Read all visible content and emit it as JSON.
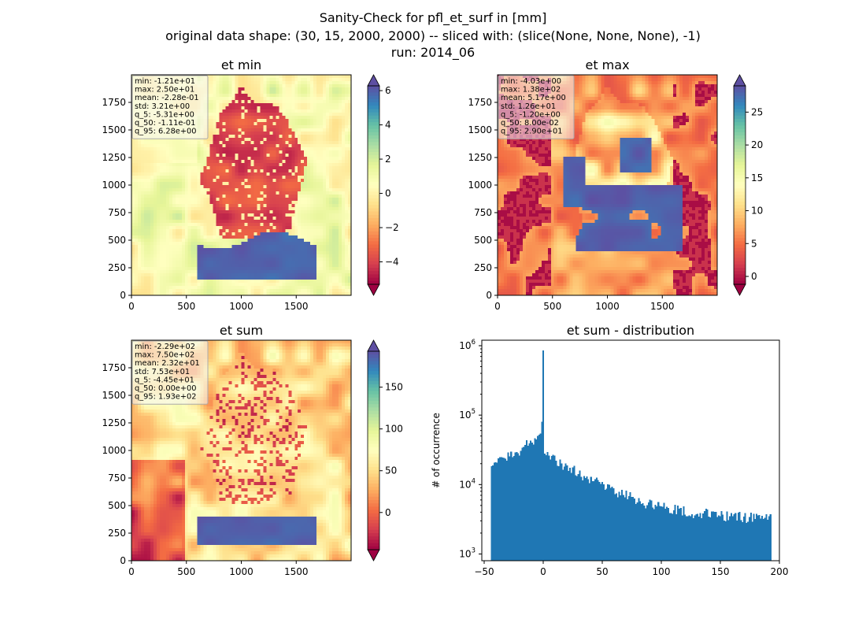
{
  "suptitle": {
    "line1": "Sanity-Check for pfl_et_surf in [mm]",
    "line2": "original data shape: (30, 15, 2000, 2000) -- sliced with: (slice(None, None, None), -1)",
    "line3": "run: 2014_06"
  },
  "colors": {
    "spectral": [
      "#9e0142",
      "#d53e4f",
      "#f46d43",
      "#fdae61",
      "#fee08b",
      "#ffffbf",
      "#e6f598",
      "#abdda4",
      "#66c2a5",
      "#3288bd",
      "#5e4fa2"
    ],
    "hist_bar": "#1f77b4"
  },
  "chart_data": [
    {
      "type": "heatmap",
      "title": "et min",
      "xlim": [
        0,
        2000
      ],
      "ylim": [
        0,
        2000
      ],
      "xticks": [
        0,
        500,
        1000,
        1500
      ],
      "yticks": [
        0,
        250,
        500,
        750,
        1000,
        1250,
        1500,
        1750
      ],
      "colorbar": {
        "ticks": [
          -4,
          -2,
          0,
          2,
          4,
          6
        ],
        "range": [
          -5.31,
          6.28
        ],
        "extend": "both"
      },
      "stats": [
        "min: -1.21e+01",
        "max: 2.50e+01",
        "mean: -2.28e-01",
        "std: 3.21e+00",
        "q_5: -5.31e+00",
        "q_50: -1.11e-01",
        "q_95: 6.28e+00"
      ]
    },
    {
      "type": "heatmap",
      "title": "et max",
      "xlim": [
        0,
        2000
      ],
      "ylim": [
        0,
        2000
      ],
      "xticks": [
        0,
        500,
        1000,
        1500
      ],
      "yticks": [
        0,
        250,
        500,
        750,
        1000,
        1250,
        1500,
        1750
      ],
      "colorbar": {
        "ticks": [
          0,
          5,
          10,
          15,
          20,
          25
        ],
        "range": [
          -1.2,
          29.0
        ],
        "extend": "both"
      },
      "stats": [
        "min: -4.03e+00",
        "max: 1.38e+02",
        "mean: 5.17e+00",
        "std: 1.26e+01",
        "q_5: -1.20e+00",
        "q_50: 8.00e-02",
        "q_95: 2.90e+01"
      ]
    },
    {
      "type": "heatmap",
      "title": "et sum",
      "xlim": [
        0,
        2000
      ],
      "ylim": [
        0,
        2000
      ],
      "xticks": [
        0,
        500,
        1000,
        1500
      ],
      "yticks": [
        0,
        250,
        500,
        750,
        1000,
        1250,
        1500,
        1750
      ],
      "colorbar": {
        "ticks": [
          0,
          50,
          100,
          150
        ],
        "range": [
          -44.5,
          193.0
        ],
        "extend": "both"
      },
      "stats": [
        "min: -2.29e+02",
        "max: 7.50e+02",
        "mean: 2.32e+01",
        "std: 7.53e+01",
        "q_5: -4.45e+01",
        "q_50: 0.00e+00",
        "q_95: 1.93e+02"
      ]
    },
    {
      "type": "bar",
      "title": "et sum - distribution",
      "ylabel": "# of occurrence",
      "xlabel": "",
      "xlim": [
        -52,
        200
      ],
      "xticks": [
        -50,
        0,
        50,
        100,
        150,
        200
      ],
      "yscale": "log",
      "ylim": [
        800,
        1200000
      ],
      "yticks": [
        1000,
        10000,
        100000,
        1000000
      ],
      "bins": {
        "start": -44.5,
        "end": 193.0,
        "count": 200
      },
      "spike": {
        "x": 0,
        "value": 850000
      },
      "anchors": [
        [
          -44.5,
          21000
        ],
        [
          -40,
          20000
        ],
        [
          -35,
          22000
        ],
        [
          -30,
          25000
        ],
        [
          -25,
          28000
        ],
        [
          -20,
          32000
        ],
        [
          -15,
          36000
        ],
        [
          -10,
          42000
        ],
        [
          -6,
          47000
        ],
        [
          -3,
          55000
        ],
        [
          -1,
          70000
        ],
        [
          0.5,
          28000
        ],
        [
          5,
          25000
        ],
        [
          10,
          22000
        ],
        [
          20,
          18000
        ],
        [
          30,
          15000
        ],
        [
          40,
          12000
        ],
        [
          50,
          10000
        ],
        [
          60,
          8000
        ],
        [
          70,
          7000
        ],
        [
          80,
          6000
        ],
        [
          90,
          5200
        ],
        [
          100,
          4800
        ],
        [
          110,
          4400
        ],
        [
          120,
          4200
        ],
        [
          130,
          3900
        ],
        [
          140,
          3800
        ],
        [
          150,
          3600
        ],
        [
          160,
          3500
        ],
        [
          170,
          3400
        ],
        [
          180,
          3300
        ],
        [
          193,
          3200
        ]
      ]
    }
  ]
}
